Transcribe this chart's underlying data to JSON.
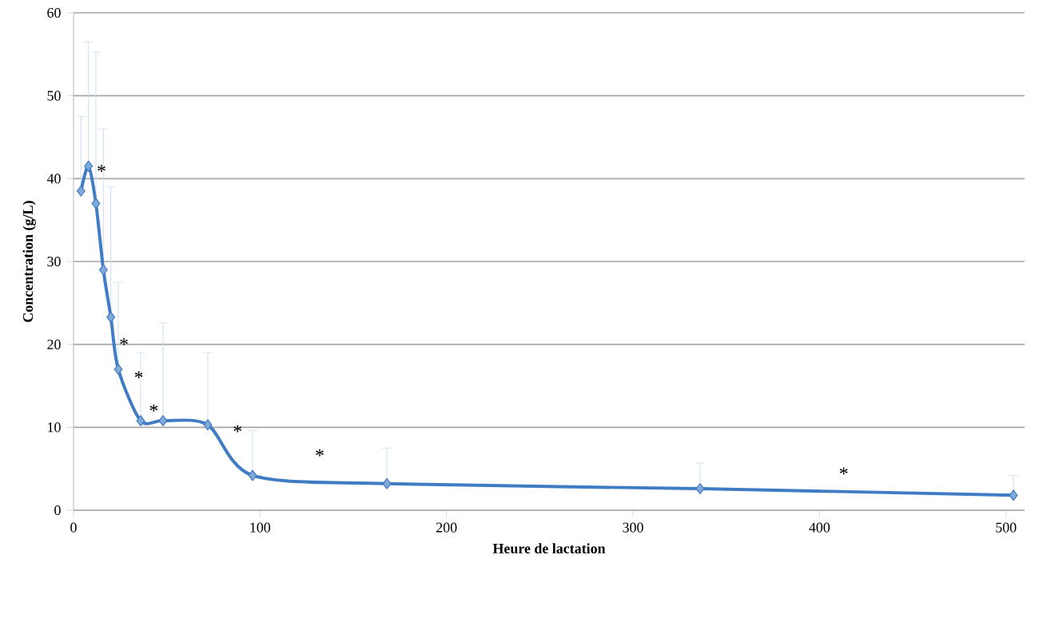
{
  "chart_data": {
    "type": "line",
    "xlabel": "Heure de lactation",
    "ylabel": "Concentration (g/L)",
    "x": [
      4,
      8,
      12,
      16,
      20,
      24,
      36,
      48,
      72,
      96,
      168,
      336,
      504
    ],
    "series": [
      {
        "color": "#3f7cc4",
        "values": [
          38.5,
          41.5,
          37,
          29,
          23.3,
          17,
          10.8,
          10.8,
          10.3,
          4.2,
          3.2,
          2.6,
          1.8
        ],
        "errors": [
          [
            38.5,
            47.5
          ],
          [
            41.5,
            56.5
          ],
          [
            37,
            55.3
          ],
          [
            29,
            46
          ],
          [
            23.3,
            39
          ],
          [
            17,
            27.5
          ],
          [
            10.8,
            19
          ],
          [
            10.8,
            22.6
          ],
          [
            10.3,
            19
          ],
          [
            4.2,
            9.6
          ],
          [
            3.2,
            7.5
          ],
          [
            2.6,
            5.7
          ],
          [
            1.8,
            4.2
          ]
        ]
      }
    ],
    "xlim": [
      0,
      510
    ],
    "ylim": [
      0,
      60
    ],
    "xticks": [
      0,
      100,
      200,
      300,
      400,
      500
    ],
    "yticks": [
      0,
      10,
      20,
      30,
      40,
      50,
      60
    ],
    "grid": "y",
    "marker": "diamond",
    "line_style": "solid",
    "annotations": [
      {
        "text": "*",
        "x": 15,
        "y": 40.9
      },
      {
        "text": "*",
        "x": 27,
        "y": 20
      },
      {
        "text": "*",
        "x": 35,
        "y": 16
      },
      "*",
      "*",
      "*",
      "*"
    ]
  }
}
